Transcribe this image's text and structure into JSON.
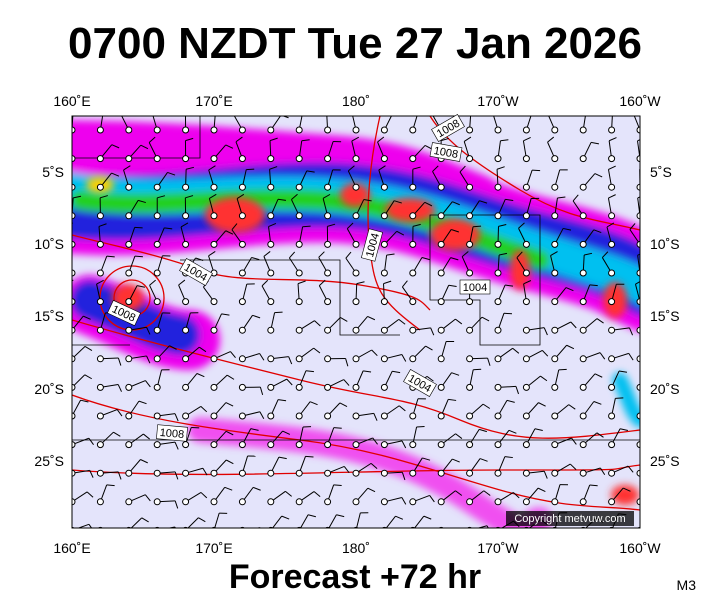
{
  "header": {
    "title": "0700 NZDT Tue 27 Jan 2026"
  },
  "map": {
    "lon_labels": [
      "160˚E",
      "170˚E",
      "180˚",
      "170˚W",
      "160˚W"
    ],
    "lat_labels": [
      "5˚S",
      "10˚S",
      "15˚S",
      "20˚S",
      "25˚S"
    ],
    "isobar_labels": [
      "1008",
      "1008",
      "1004",
      "1004",
      "1004",
      "1008",
      "1004",
      "1008"
    ],
    "copyright": "Copyright metvuw.com"
  },
  "footer": {
    "forecast": "Forecast +72 hr",
    "code": "M3"
  }
}
